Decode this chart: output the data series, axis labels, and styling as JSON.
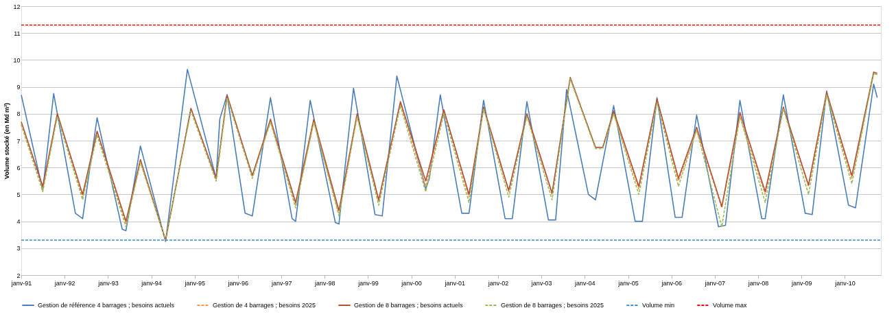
{
  "chart_data": {
    "type": "line",
    "ylabel": "Volume stocké (en Md m³)",
    "x": [
      "1991-01",
      "1991-07",
      "1991-11",
      "1992-06",
      "1992-10",
      "1993-06",
      "1993-10",
      "1994-05",
      "1994-12",
      "1995-07",
      "1995-10",
      "1996-05",
      "1996-10",
      "1997-05",
      "1997-10",
      "1998-05",
      "1998-10",
      "1999-04",
      "1999-10",
      "2000-05",
      "2000-10",
      "2001-05",
      "2001-09",
      "2002-04",
      "2002-09",
      "2003-04",
      "2003-09",
      "2004-04",
      "2004-06",
      "2004-09",
      "2005-04",
      "2005-09",
      "2006-03",
      "2006-08",
      "2007-03",
      "2007-08",
      "2008-03",
      "2008-08",
      "2009-03",
      "2009-08",
      "2010-03",
      "2010-09",
      "2010-10"
    ],
    "series": [
      {
        "name": "Gestion de référence 4 barrages ; besoins actuels",
        "color": "#4a7ebb",
        "line_style": "solid",
        "x": [
          "1991-01",
          "1991-07",
          "1991-10",
          "1992-04",
          "1992-06",
          "1992-10",
          "1993-05",
          "1993-06",
          "1993-10",
          "1994-05",
          "1994-11",
          "1995-07",
          "1995-08",
          "1995-10",
          "1996-03",
          "1996-05",
          "1996-10",
          "1997-04",
          "1997-05",
          "1997-09",
          "1998-04",
          "1998-05",
          "1998-09",
          "1999-03",
          "1999-05",
          "1999-09",
          "2000-05",
          "2000-06",
          "2000-09",
          "2001-03",
          "2001-05",
          "2001-09",
          "2002-03",
          "2002-05",
          "2002-09",
          "2003-03",
          "2003-05",
          "2003-08",
          "2004-02",
          "2004-04",
          "2004-09",
          "2005-03",
          "2005-05",
          "2005-09",
          "2006-02",
          "2006-04",
          "2006-08",
          "2007-02",
          "2007-04",
          "2007-08",
          "2008-02",
          "2008-03",
          "2008-08",
          "2009-02",
          "2009-04",
          "2009-08",
          "2010-02",
          "2010-04",
          "2010-09",
          "2010-10"
        ],
        "values": [
          8.7,
          5.15,
          8.75,
          4.3,
          4.1,
          7.85,
          3.7,
          3.65,
          6.8,
          3.25,
          9.65,
          5.6,
          7.8,
          8.7,
          4.3,
          4.2,
          8.6,
          4.1,
          4.0,
          8.5,
          3.95,
          3.9,
          8.95,
          4.25,
          4.2,
          9.4,
          5.2,
          5.6,
          8.7,
          4.3,
          4.3,
          8.5,
          4.1,
          4.1,
          8.45,
          4.05,
          4.05,
          8.9,
          5.0,
          4.8,
          8.3,
          4.0,
          4.0,
          8.6,
          4.15,
          4.15,
          7.95,
          3.8,
          3.85,
          8.5,
          4.1,
          4.1,
          8.7,
          4.3,
          4.25,
          8.85,
          4.6,
          4.5,
          9.1,
          8.6
        ]
      },
      {
        "name": "Gestion de 4 barrages ; besoins 2025",
        "color": "#f79646",
        "line_style": "dashed",
        "values": [
          7.6,
          5.2,
          8.0,
          4.9,
          7.3,
          3.9,
          6.2,
          3.3,
          8.2,
          5.5,
          8.6,
          5.7,
          7.7,
          4.6,
          7.7,
          4.3,
          7.9,
          4.7,
          8.4,
          5.3,
          8.1,
          4.9,
          8.2,
          5.1,
          7.95,
          5.0,
          9.3,
          6.75,
          6.75,
          8.0,
          5.2,
          8.5,
          5.5,
          7.4,
          4.5,
          7.9,
          5.0,
          8.2,
          5.3,
          8.7,
          5.6,
          9.5,
          9.45
        ]
      },
      {
        "name": "Gestion de 8 barrages ; besoins actuels",
        "color": "#b0503a",
        "line_style": "solid",
        "values": [
          7.7,
          5.3,
          8.0,
          5.0,
          7.35,
          4.0,
          6.3,
          3.3,
          8.2,
          5.6,
          8.7,
          5.7,
          7.8,
          4.7,
          7.8,
          4.4,
          8.0,
          4.8,
          8.45,
          5.5,
          8.15,
          5.0,
          8.25,
          5.15,
          8.0,
          5.05,
          9.35,
          6.75,
          6.75,
          8.1,
          5.3,
          8.55,
          5.6,
          7.5,
          4.55,
          8.05,
          5.1,
          8.25,
          5.35,
          8.8,
          5.7,
          9.55,
          9.5
        ]
      },
      {
        "name": "Gestion de 8 barrages ; besoins 2025",
        "color": "#9bbb59",
        "line_style": "dashed",
        "values": [
          7.6,
          5.1,
          7.9,
          4.8,
          7.2,
          3.8,
          6.2,
          3.3,
          8.1,
          5.5,
          8.6,
          5.6,
          7.7,
          4.5,
          7.7,
          4.2,
          7.9,
          4.6,
          8.3,
          5.1,
          8.0,
          4.7,
          8.2,
          4.9,
          7.9,
          4.8,
          9.3,
          6.7,
          6.7,
          8.0,
          5.0,
          8.4,
          5.3,
          7.4,
          3.8,
          7.9,
          4.7,
          8.2,
          5.0,
          8.7,
          5.4,
          9.5,
          9.45
        ]
      }
    ],
    "ref_lines": [
      {
        "axis": "y",
        "value": 3.3,
        "label": "Volume min",
        "color": "#3a8fd9",
        "line_style": "dashed"
      },
      {
        "axis": "y",
        "value": 11.3,
        "label": "Volume max",
        "color": "#ff0000",
        "line_style": "dashed"
      }
    ],
    "xlim": [
      "1991-01",
      "2010-11"
    ],
    "xticks": [
      {
        "value": "1991-01",
        "label": "janv-91"
      },
      {
        "value": "1992-01",
        "label": "janv-92"
      },
      {
        "value": "1993-01",
        "label": "janv-93"
      },
      {
        "value": "1994-01",
        "label": "janv-94"
      },
      {
        "value": "1995-01",
        "label": "janv-95"
      },
      {
        "value": "1996-01",
        "label": "janv-96"
      },
      {
        "value": "1997-01",
        "label": "janv-97"
      },
      {
        "value": "1998-01",
        "label": "janv-98"
      },
      {
        "value": "1999-01",
        "label": "janv-99"
      },
      {
        "value": "2000-01",
        "label": "janv-00"
      },
      {
        "value": "2001-01",
        "label": "janv-01"
      },
      {
        "value": "2002-01",
        "label": "janv-02"
      },
      {
        "value": "2003-01",
        "label": "janv-03"
      },
      {
        "value": "2004-01",
        "label": "janv-04"
      },
      {
        "value": "2005-01",
        "label": "janv-05"
      },
      {
        "value": "2006-01",
        "label": "janv-06"
      },
      {
        "value": "2007-01",
        "label": "janv-07"
      },
      {
        "value": "2008-01",
        "label": "janv-08"
      },
      {
        "value": "2009-01",
        "label": "janv-09"
      },
      {
        "value": "2010-01",
        "label": "janv-10"
      }
    ],
    "ylim": [
      2,
      12
    ],
    "yticks": [
      2,
      3,
      4,
      5,
      6,
      7,
      8,
      9,
      10,
      11,
      12
    ],
    "grid": "y",
    "legend": "bottom"
  }
}
